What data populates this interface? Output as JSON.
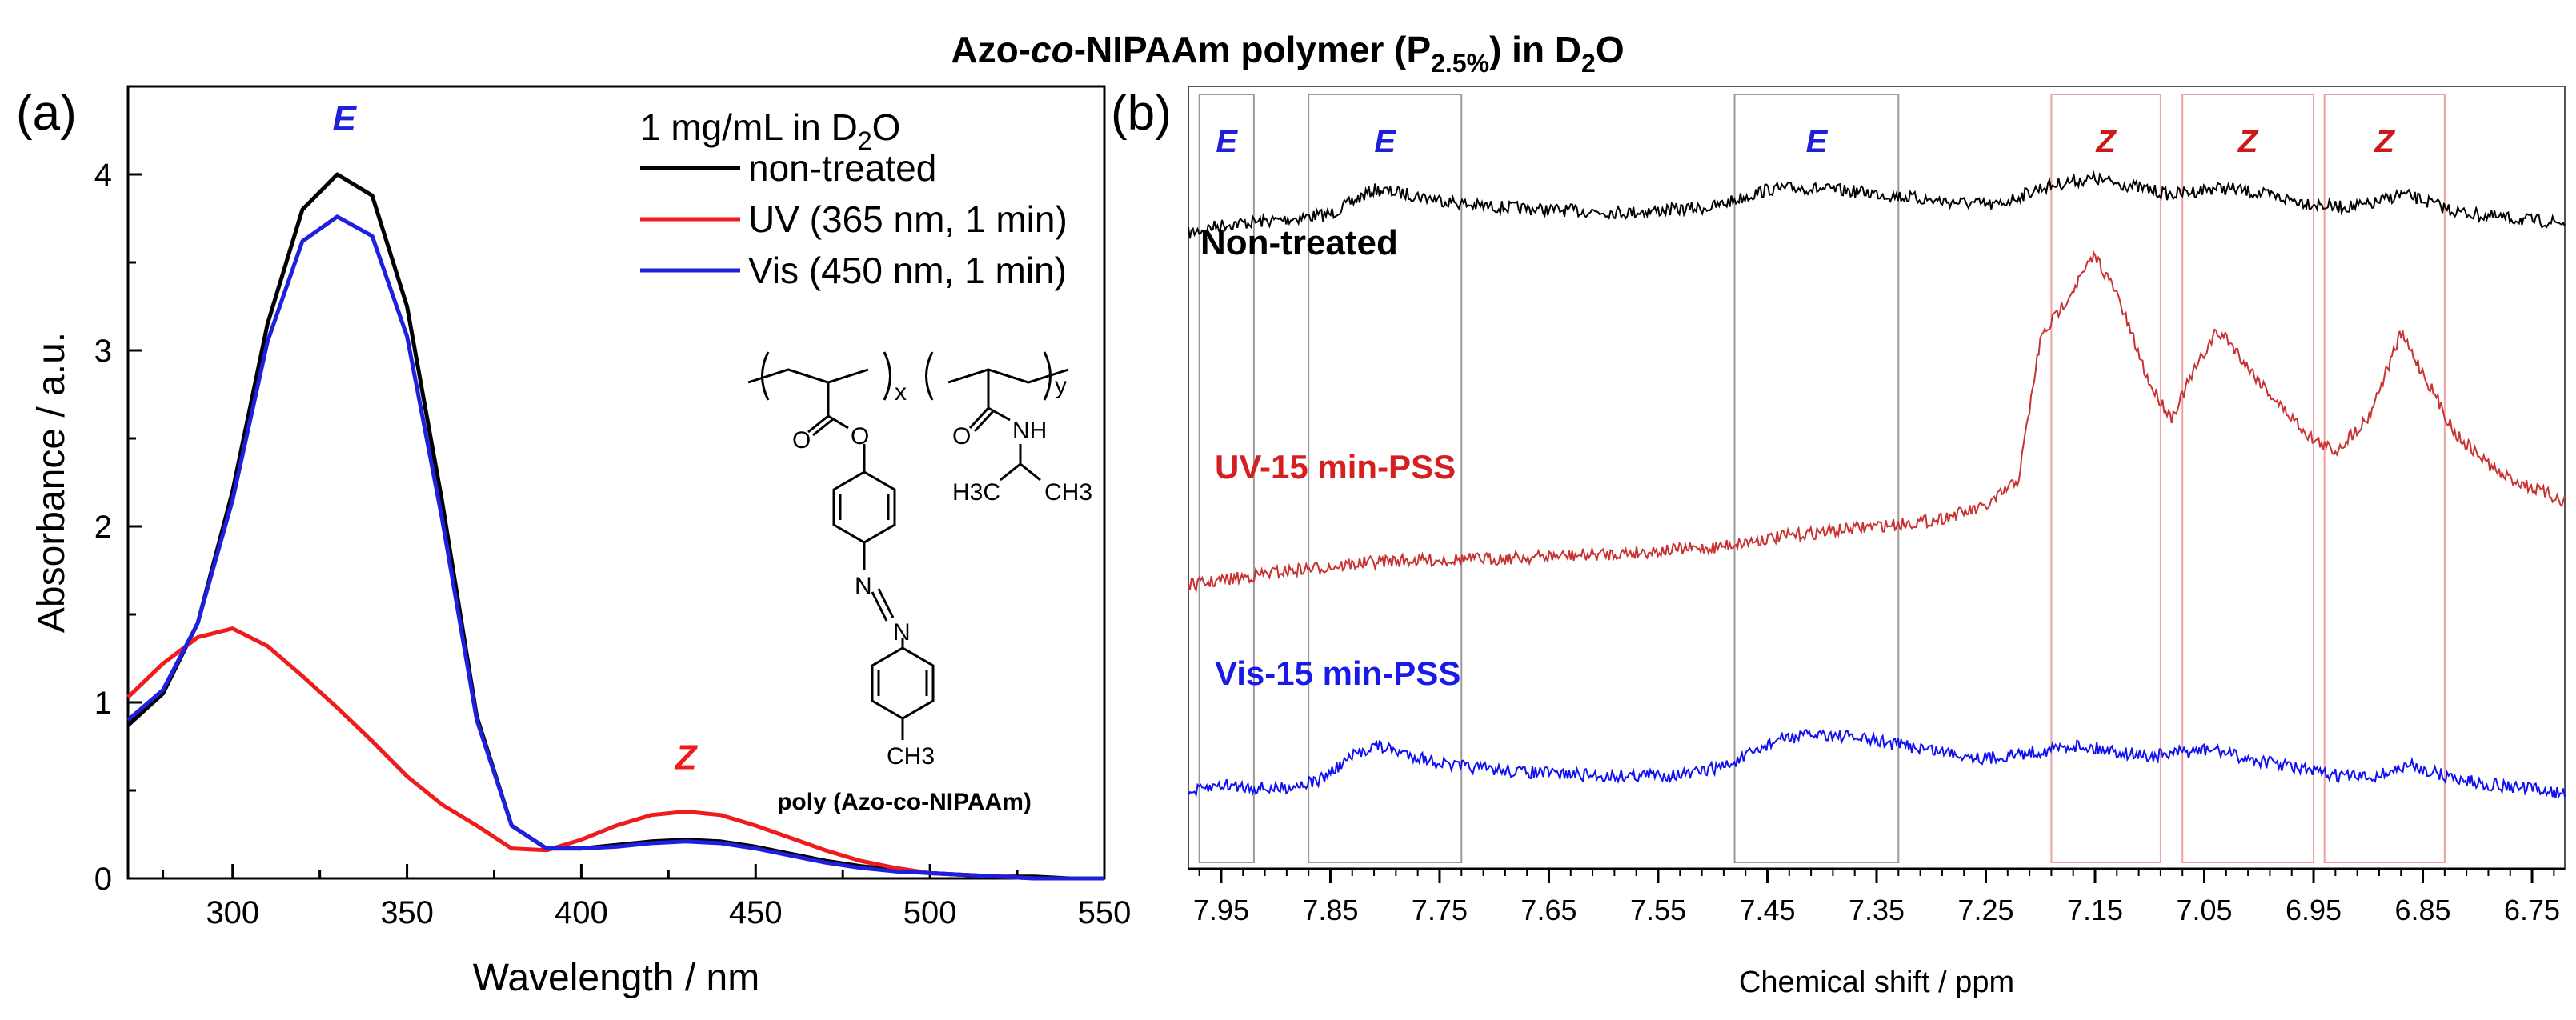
{
  "figure": {
    "title_parts": {
      "a": "Azo-",
      "b": "co",
      "c": "-NIPAAm polymer (P",
      "sub": "2.5%",
      "d": ") in D",
      "sub2": "2",
      "e": "O"
    }
  },
  "colors": {
    "black": "#000000",
    "red": "#ee1c1c",
    "blue": "#1f1fe0",
    "nmr_red": "#c83232",
    "nmr_blue": "#1010f0",
    "box_gray": "#9a9a9a",
    "box_pink": "#f0a0a0",
    "label_blue": "#2020d8",
    "label_red": "#cc1a1a"
  },
  "chart_data": [
    {
      "type": "line",
      "panel_label": "(a)",
      "xlabel": "Wavelength / nm",
      "ylabel": "Absorbance / a.u.",
      "xlim": [
        270,
        550
      ],
      "ylim": [
        0,
        4.5
      ],
      "x_ticks": [
        300,
        350,
        400,
        450,
        500,
        550
      ],
      "y_ticks": [
        0,
        1,
        2,
        3,
        4
      ],
      "legend": {
        "title": "1 mg/mL in D",
        "title_sub": "2",
        "title_end": "O",
        "placement": "top-right"
      },
      "annotations": [
        {
          "text": "E",
          "x": 332,
          "y": 4.25
        },
        {
          "text": "Z",
          "x": 430,
          "y": 0.62
        }
      ],
      "structure": {
        "caption": "poly (Azo-co-NIPAAm)",
        "x_label": "x",
        "y_label": "y",
        "o1": "O",
        "o2": "O",
        "o3": "O",
        "nh": "NH",
        "n1": "N",
        "n2": "N",
        "ch3_a": "H3C",
        "ch3_b": "CH3",
        "ch3_c": "CH3"
      },
      "x": [
        270,
        280,
        290,
        300,
        310,
        320,
        330,
        340,
        350,
        360,
        370,
        380,
        390,
        400,
        410,
        420,
        430,
        440,
        450,
        460,
        470,
        480,
        490,
        500,
        510,
        520,
        530,
        540,
        550
      ],
      "series": [
        {
          "name": "non-treated",
          "color": "black",
          "values": [
            0.87,
            1.05,
            1.45,
            2.2,
            3.15,
            3.8,
            4.0,
            3.88,
            3.25,
            2.15,
            0.92,
            0.3,
            0.17,
            0.17,
            0.19,
            0.21,
            0.22,
            0.21,
            0.18,
            0.14,
            0.1,
            0.07,
            0.05,
            0.03,
            0.02,
            0.01,
            0.01,
            0.0,
            0.0
          ]
        },
        {
          "name": "UV (365 nm, 1 min)",
          "color": "red",
          "values": [
            1.03,
            1.22,
            1.37,
            1.42,
            1.32,
            1.15,
            0.97,
            0.78,
            0.58,
            0.42,
            0.3,
            0.17,
            0.16,
            0.22,
            0.3,
            0.36,
            0.38,
            0.36,
            0.3,
            0.23,
            0.16,
            0.1,
            0.06,
            0.03,
            0.02,
            0.01,
            0.0,
            0.0,
            0.0
          ]
        },
        {
          "name": "Vis (450 nm, 1 min)",
          "color": "blue",
          "values": [
            0.9,
            1.07,
            1.45,
            2.15,
            3.05,
            3.62,
            3.76,
            3.65,
            3.08,
            2.05,
            0.9,
            0.3,
            0.17,
            0.17,
            0.18,
            0.2,
            0.21,
            0.2,
            0.17,
            0.13,
            0.09,
            0.06,
            0.04,
            0.03,
            0.02,
            0.01,
            0.0,
            0.0,
            0.0
          ]
        }
      ]
    },
    {
      "type": "line",
      "panel_label": "(b)",
      "xlabel": "Chemical shift / ppm",
      "xlim": [
        7.98,
        6.72
      ],
      "x_ticks": [
        7.95,
        7.85,
        7.75,
        7.65,
        7.55,
        7.45,
        7.35,
        7.25,
        7.15,
        7.05,
        6.95,
        6.85,
        6.75
      ],
      "x_ticks_labels": [
        "7.95",
        "7.85",
        "7.75",
        "7.65",
        "7.55",
        "7.45",
        "7.35",
        "7.25",
        "7.15",
        "7.05",
        "6.95",
        "6.85",
        "6.75"
      ],
      "regions": [
        {
          "label": "E",
          "range": [
            7.97,
            7.92
          ],
          "color": "box_gray"
        },
        {
          "label": "E",
          "range": [
            7.87,
            7.73
          ],
          "color": "box_gray"
        },
        {
          "label": "E",
          "range": [
            7.48,
            7.33
          ],
          "color": "box_gray"
        },
        {
          "label": "Z",
          "range": [
            7.19,
            7.09
          ],
          "color": "box_pink"
        },
        {
          "label": "Z",
          "range": [
            7.07,
            6.95
          ],
          "color": "box_pink"
        },
        {
          "label": "Z",
          "range": [
            6.94,
            6.83
          ],
          "color": "box_pink"
        }
      ],
      "series": [
        {
          "name": "Non-treated",
          "color": "black",
          "baseline": 0.0,
          "x": [
            7.98,
            7.95,
            7.9,
            7.85,
            7.81,
            7.78,
            7.72,
            7.65,
            7.58,
            7.5,
            7.45,
            7.42,
            7.36,
            7.3,
            7.24,
            7.2,
            7.17,
            7.15,
            7.12,
            7.08,
            7.04,
            7.02,
            6.99,
            6.95,
            6.93,
            6.9,
            6.87,
            6.85,
            6.82,
            6.78,
            6.72
          ],
          "values": [
            0.0,
            0.1,
            0.15,
            0.22,
            0.5,
            0.45,
            0.32,
            0.27,
            0.24,
            0.3,
            0.5,
            0.52,
            0.47,
            0.38,
            0.32,
            0.52,
            0.6,
            0.62,
            0.55,
            0.44,
            0.52,
            0.5,
            0.43,
            0.34,
            0.3,
            0.32,
            0.45,
            0.38,
            0.25,
            0.18,
            0.12
          ]
        },
        {
          "name": "UV-15 min-PSS",
          "color": "nmr_red",
          "baseline": 0.0,
          "x": [
            7.98,
            7.9,
            7.8,
            7.7,
            7.6,
            7.5,
            7.45,
            7.4,
            7.3,
            7.25,
            7.22,
            7.2,
            7.17,
            7.15,
            7.13,
            7.1,
            7.08,
            7.06,
            7.04,
            7.03,
            7.01,
            6.98,
            6.95,
            6.93,
            6.9,
            6.88,
            6.87,
            6.85,
            6.82,
            6.78,
            6.72
          ],
          "values": [
            0.0,
            0.12,
            0.22,
            0.24,
            0.28,
            0.34,
            0.42,
            0.48,
            0.58,
            0.7,
            0.95,
            2.2,
            2.65,
            2.95,
            2.6,
            1.8,
            1.5,
            1.9,
            2.25,
            2.22,
            1.95,
            1.6,
            1.3,
            1.2,
            1.5,
            2.0,
            2.25,
            1.9,
            1.35,
            1.0,
            0.75
          ]
        },
        {
          "name": "Vis-15 min-PSS",
          "color": "nmr_blue",
          "baseline": 0.0,
          "x": [
            7.98,
            7.95,
            7.9,
            7.86,
            7.83,
            7.81,
            7.78,
            7.74,
            7.68,
            7.6,
            7.52,
            7.48,
            7.44,
            7.4,
            7.35,
            7.3,
            7.25,
            7.2,
            7.17,
            7.14,
            7.1,
            7.06,
            7.04,
            7.02,
            6.98,
            6.94,
            6.9,
            6.88,
            6.86,
            6.83,
            6.8,
            6.75,
            6.72
          ],
          "values": [
            0.0,
            0.1,
            0.05,
            0.15,
            0.42,
            0.55,
            0.45,
            0.32,
            0.25,
            0.2,
            0.22,
            0.35,
            0.62,
            0.68,
            0.6,
            0.5,
            0.4,
            0.48,
            0.55,
            0.5,
            0.42,
            0.48,
            0.5,
            0.42,
            0.33,
            0.22,
            0.18,
            0.25,
            0.32,
            0.2,
            0.12,
            0.05,
            0.0
          ]
        }
      ]
    }
  ]
}
